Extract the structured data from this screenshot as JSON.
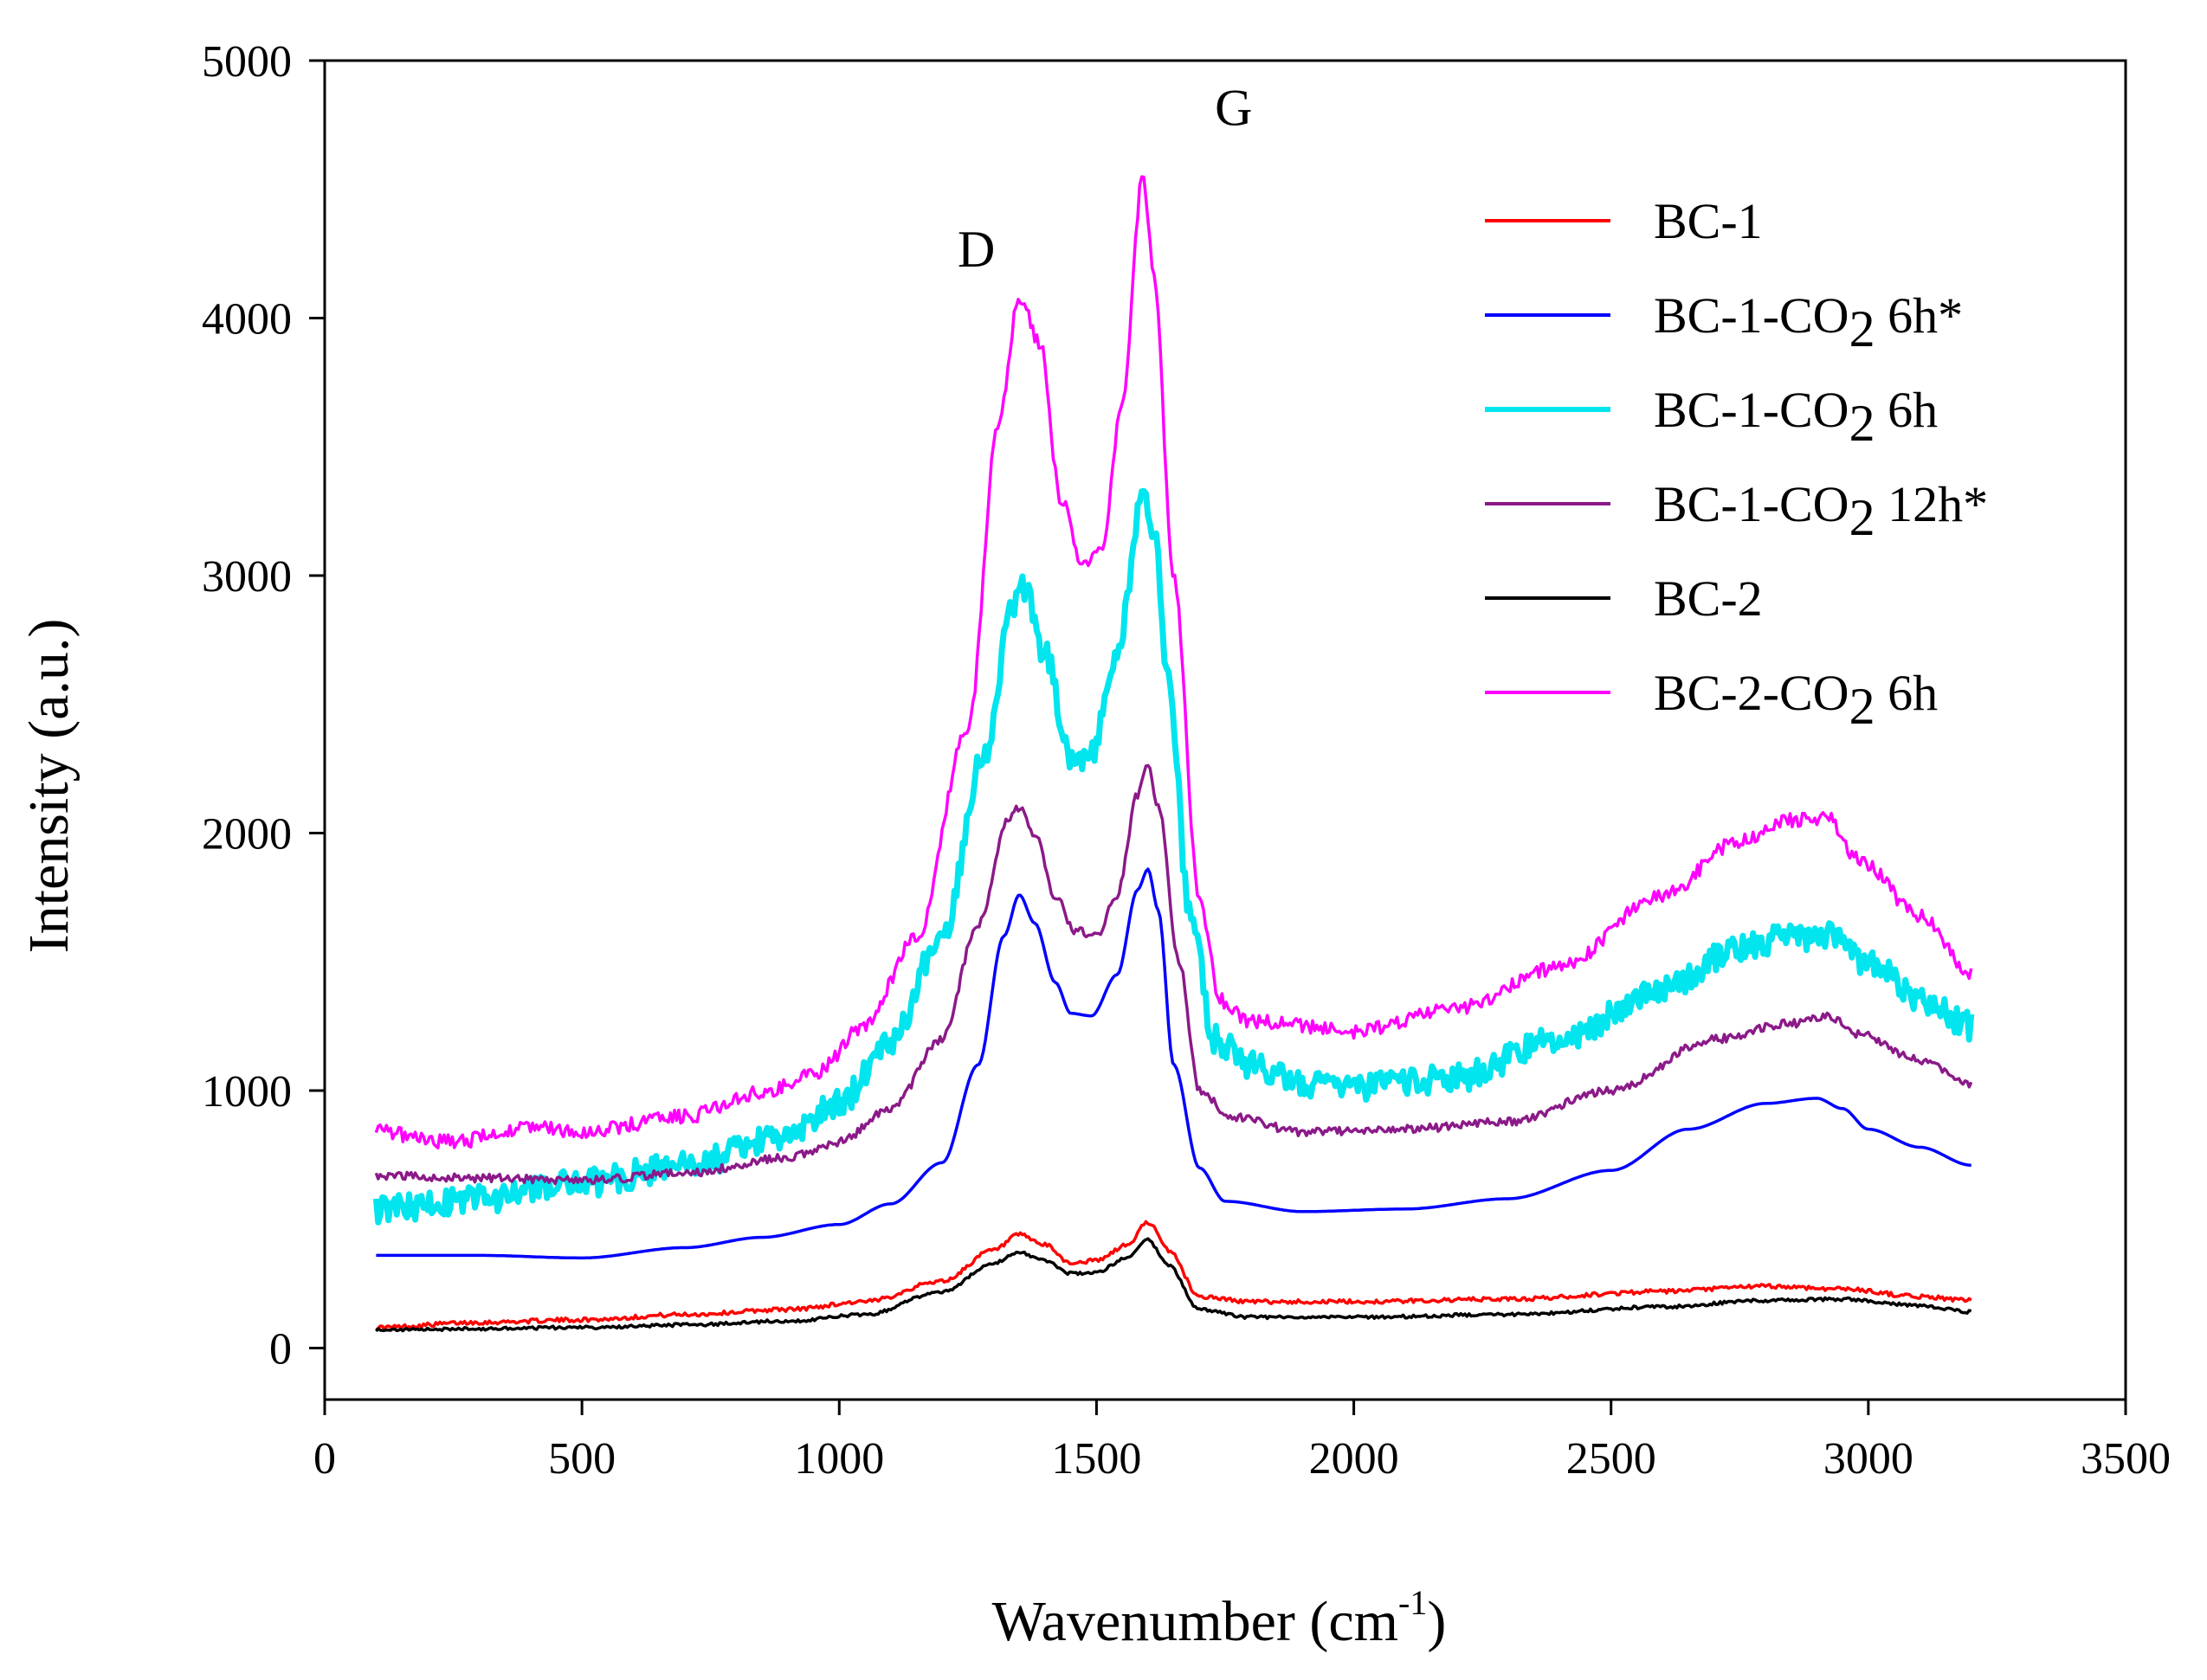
{
  "chart_data": {
    "type": "line",
    "title": "",
    "xlabel": "Wavenumber (cm",
    "xlabel_superscript": "-1",
    "xlabel_close": ")",
    "ylabel": "Intensity (a.u.)",
    "xlim": [
      0,
      3500
    ],
    "ylim": [
      -200,
      5000
    ],
    "xticks": [
      0,
      500,
      1000,
      1500,
      2000,
      2500,
      3000,
      3500
    ],
    "yticks": [
      0,
      1000,
      2000,
      3000,
      4000,
      5000
    ],
    "grid": false,
    "legend_position": "top-right",
    "annotations": [
      {
        "text": "D",
        "x": 1230,
        "y": 4200
      },
      {
        "text": "G",
        "x": 1730,
        "y": 4750
      }
    ],
    "series": [
      {
        "name": "BC-1",
        "name_base": "BC-1",
        "name_sub": "",
        "name_suffix": "",
        "color": "#ff0000",
        "noise": 8,
        "points": [
          [
            100,
            80
          ],
          [
            300,
            100
          ],
          [
            500,
            110
          ],
          [
            700,
            130
          ],
          [
            900,
            150
          ],
          [
            1050,
            180
          ],
          [
            1200,
            260
          ],
          [
            1300,
            380
          ],
          [
            1350,
            440
          ],
          [
            1400,
            400
          ],
          [
            1450,
            330
          ],
          [
            1500,
            340
          ],
          [
            1560,
            400
          ],
          [
            1600,
            490
          ],
          [
            1640,
            380
          ],
          [
            1700,
            200
          ],
          [
            1800,
            180
          ],
          [
            2000,
            180
          ],
          [
            2300,
            190
          ],
          [
            2600,
            220
          ],
          [
            2800,
            240
          ],
          [
            2950,
            230
          ],
          [
            3100,
            200
          ],
          [
            3200,
            185
          ]
        ]
      },
      {
        "name": "BC-1-CO2 6h*",
        "name_base": "BC-1-CO",
        "name_sub": "2",
        "name_suffix": " 6h*",
        "color": "#0000ff",
        "noise": 0,
        "points": [
          [
            100,
            360
          ],
          [
            300,
            360
          ],
          [
            500,
            350
          ],
          [
            700,
            390
          ],
          [
            850,
            430
          ],
          [
            1000,
            480
          ],
          [
            1100,
            560
          ],
          [
            1200,
            720
          ],
          [
            1270,
            1100
          ],
          [
            1320,
            1600
          ],
          [
            1350,
            1760
          ],
          [
            1380,
            1650
          ],
          [
            1420,
            1420
          ],
          [
            1450,
            1300
          ],
          [
            1490,
            1290
          ],
          [
            1540,
            1450
          ],
          [
            1580,
            1780
          ],
          [
            1600,
            1860
          ],
          [
            1620,
            1700
          ],
          [
            1650,
            1100
          ],
          [
            1700,
            700
          ],
          [
            1750,
            570
          ],
          [
            1900,
            530
          ],
          [
            2100,
            540
          ],
          [
            2300,
            580
          ],
          [
            2500,
            690
          ],
          [
            2650,
            850
          ],
          [
            2800,
            950
          ],
          [
            2900,
            970
          ],
          [
            2950,
            930
          ],
          [
            3000,
            850
          ],
          [
            3100,
            780
          ],
          [
            3200,
            710
          ]
        ]
      },
      {
        "name": "BC-1-CO2 6h",
        "name_base": "BC-1-CO",
        "name_sub": "2",
        "name_suffix": " 6h",
        "color": "#00e5ee",
        "noise": 55,
        "width": 7,
        "points": [
          [
            100,
            540
          ],
          [
            300,
            580
          ],
          [
            500,
            640
          ],
          [
            700,
            710
          ],
          [
            900,
            820
          ],
          [
            1000,
            950
          ],
          [
            1100,
            1200
          ],
          [
            1200,
            1600
          ],
          [
            1280,
            2300
          ],
          [
            1340,
            2900
          ],
          [
            1360,
            2950
          ],
          [
            1400,
            2700
          ],
          [
            1450,
            2300
          ],
          [
            1490,
            2300
          ],
          [
            1540,
            2700
          ],
          [
            1590,
            3300
          ],
          [
            1610,
            3200
          ],
          [
            1640,
            2600
          ],
          [
            1680,
            1700
          ],
          [
            1730,
            1200
          ],
          [
            1800,
            1100
          ],
          [
            1900,
            1030
          ],
          [
            2000,
            1010
          ],
          [
            2200,
            1050
          ],
          [
            2400,
            1200
          ],
          [
            2600,
            1400
          ],
          [
            2750,
            1550
          ],
          [
            2850,
            1600
          ],
          [
            2920,
            1600
          ],
          [
            3000,
            1500
          ],
          [
            3100,
            1350
          ],
          [
            3200,
            1250
          ]
        ]
      },
      {
        "name": "BC-1-CO2 12h*",
        "name_base": "BC-1-CO",
        "name_sub": "2",
        "name_suffix": " 12h*",
        "color": "#8b1a89",
        "noise": 16,
        "points": [
          [
            100,
            670
          ],
          [
            300,
            660
          ],
          [
            500,
            650
          ],
          [
            700,
            680
          ],
          [
            900,
            740
          ],
          [
            1000,
            800
          ],
          [
            1100,
            930
          ],
          [
            1200,
            1200
          ],
          [
            1270,
            1650
          ],
          [
            1330,
            2050
          ],
          [
            1350,
            2100
          ],
          [
            1380,
            2000
          ],
          [
            1420,
            1750
          ],
          [
            1460,
            1620
          ],
          [
            1500,
            1600
          ],
          [
            1540,
            1760
          ],
          [
            1580,
            2150
          ],
          [
            1600,
            2260
          ],
          [
            1620,
            2100
          ],
          [
            1660,
            1500
          ],
          [
            1700,
            1000
          ],
          [
            1760,
            900
          ],
          [
            1900,
            840
          ],
          [
            2100,
            850
          ],
          [
            2300,
            880
          ],
          [
            2500,
            1000
          ],
          [
            2700,
            1200
          ],
          [
            2850,
            1260
          ],
          [
            2920,
            1290
          ],
          [
            2980,
            1220
          ],
          [
            3100,
            1120
          ],
          [
            3200,
            1020
          ]
        ]
      },
      {
        "name": "BC-2",
        "name_base": "BC-2",
        "name_sub": "",
        "name_suffix": "",
        "color": "#000000",
        "noise": 6,
        "points": [
          [
            100,
            70
          ],
          [
            300,
            75
          ],
          [
            500,
            80
          ],
          [
            700,
            90
          ],
          [
            900,
            105
          ],
          [
            1050,
            130
          ],
          [
            1200,
            220
          ],
          [
            1300,
            330
          ],
          [
            1350,
            370
          ],
          [
            1400,
            340
          ],
          [
            1450,
            290
          ],
          [
            1500,
            295
          ],
          [
            1560,
            350
          ],
          [
            1600,
            420
          ],
          [
            1640,
            320
          ],
          [
            1700,
            150
          ],
          [
            1800,
            120
          ],
          [
            2000,
            120
          ],
          [
            2300,
            130
          ],
          [
            2600,
            160
          ],
          [
            2800,
            185
          ],
          [
            2950,
            190
          ],
          [
            3100,
            165
          ],
          [
            3200,
            140
          ]
        ]
      },
      {
        "name": "BC-2-CO2 6h",
        "name_base": "BC-2-CO",
        "name_sub": "2",
        "name_suffix": " 6h",
        "color": "#ff00ff",
        "noise": 28,
        "points": [
          [
            100,
            840
          ],
          [
            250,
            800
          ],
          [
            400,
            860
          ],
          [
            500,
            840
          ],
          [
            700,
            900
          ],
          [
            850,
            990
          ],
          [
            950,
            1060
          ],
          [
            1050,
            1250
          ],
          [
            1150,
            1600
          ],
          [
            1250,
            2400
          ],
          [
            1310,
            3600
          ],
          [
            1350,
            4080
          ],
          [
            1390,
            3900
          ],
          [
            1430,
            3300
          ],
          [
            1470,
            3050
          ],
          [
            1510,
            3100
          ],
          [
            1550,
            3650
          ],
          [
            1590,
            4550
          ],
          [
            1610,
            4200
          ],
          [
            1650,
            3000
          ],
          [
            1700,
            1750
          ],
          [
            1740,
            1350
          ],
          [
            1800,
            1270
          ],
          [
            2000,
            1230
          ],
          [
            2200,
            1320
          ],
          [
            2400,
            1480
          ],
          [
            2600,
            1760
          ],
          [
            2750,
            1970
          ],
          [
            2850,
            2050
          ],
          [
            2920,
            2060
          ],
          [
            2980,
            1900
          ],
          [
            3100,
            1680
          ],
          [
            3200,
            1460
          ]
        ]
      }
    ]
  }
}
